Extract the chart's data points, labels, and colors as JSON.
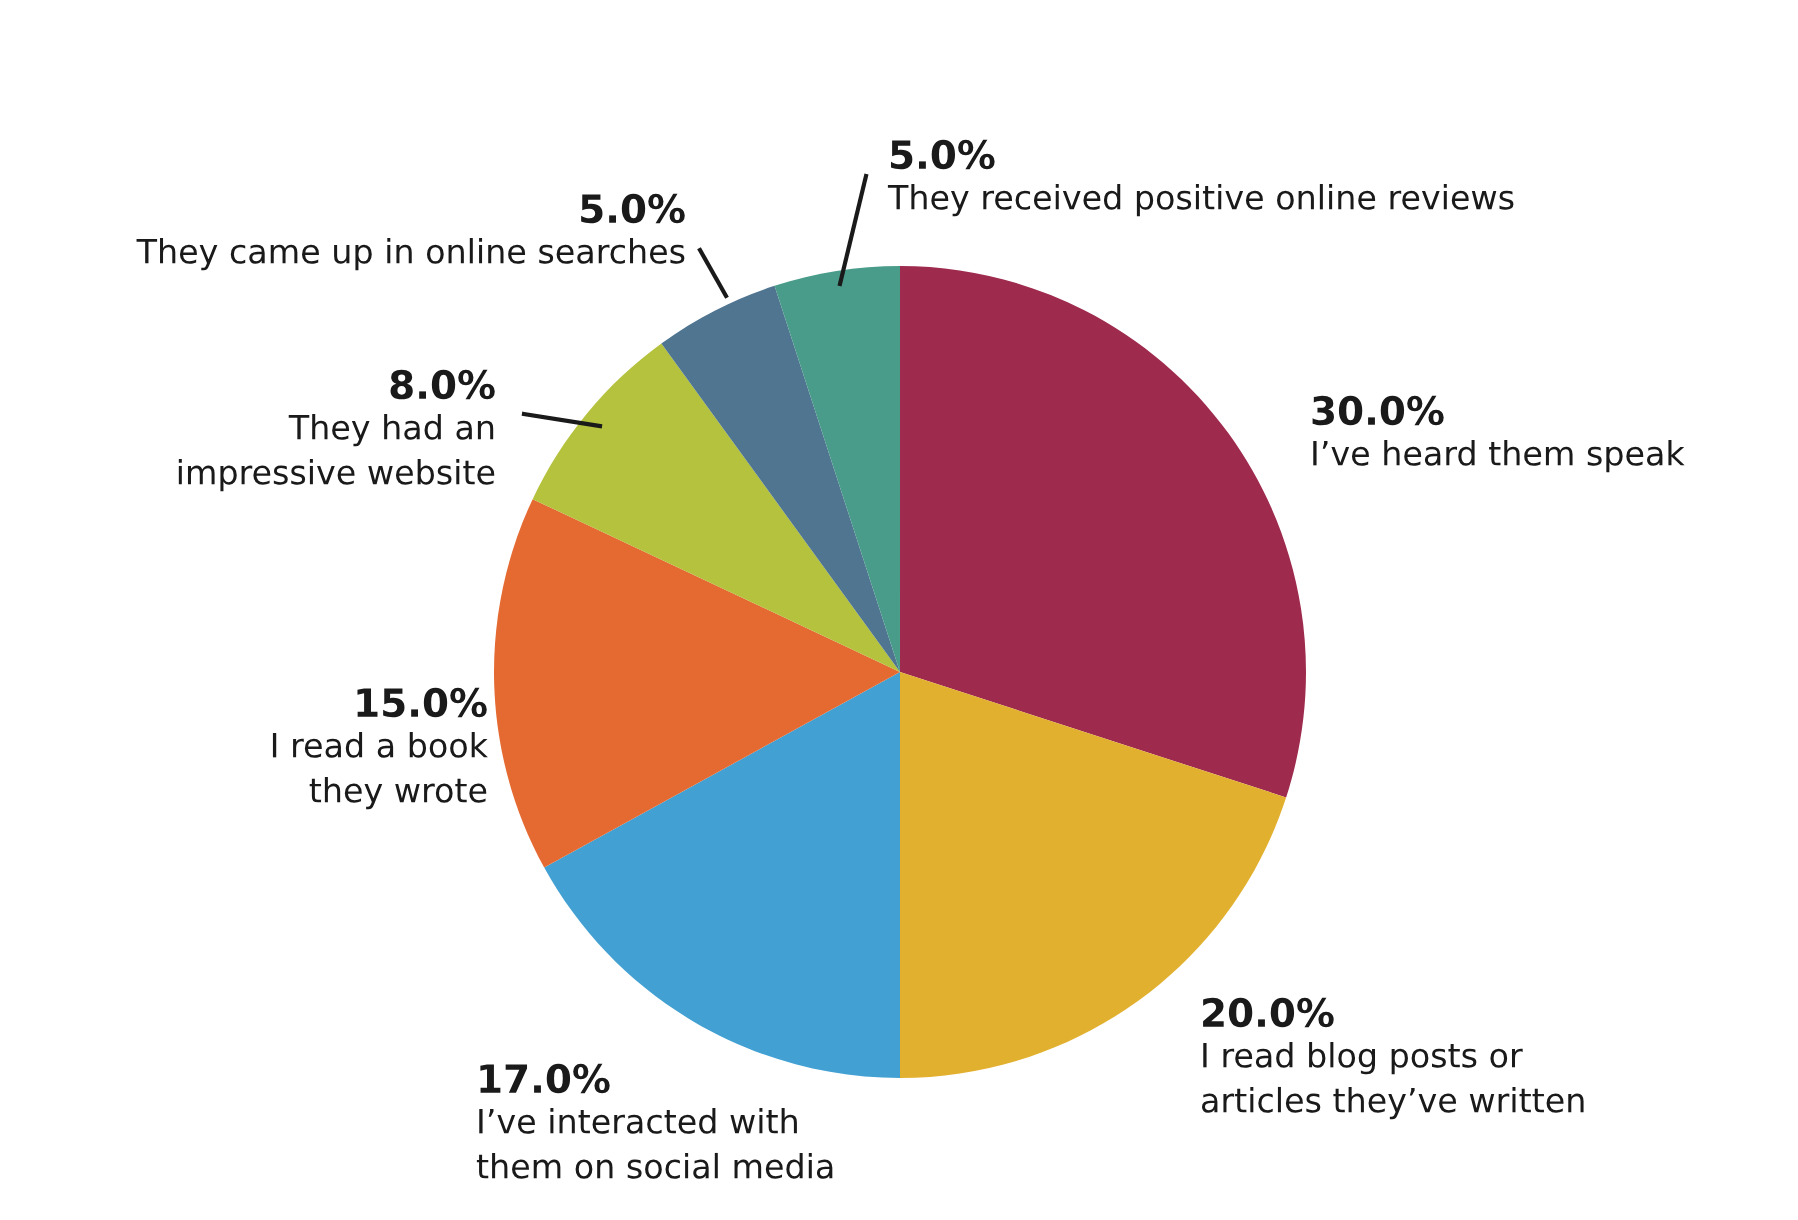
{
  "chart_data": {
    "type": "pie",
    "categories": [
      "I’ve heard them speak",
      "I read blog posts or\narticles they’ve written",
      "I’ve interacted with\nthem on social media",
      "I read a book\nthey wrote",
      "They had an\nimpressive website",
      "They came up in online searches",
      "They received positive online reviews"
    ],
    "values": [
      30,
      20,
      17,
      15,
      8,
      5,
      5
    ],
    "value_labels": [
      "30.0%",
      "20.0%",
      "17.0%",
      "15.0%",
      "8.0%",
      "5.0%",
      "5.0%"
    ],
    "colors": [
      "#9e2a4e",
      "#e2b02f",
      "#42a0d3",
      "#e56a32",
      "#b5c23d",
      "#4f7591",
      "#4a9c8a"
    ],
    "legend": false
  }
}
